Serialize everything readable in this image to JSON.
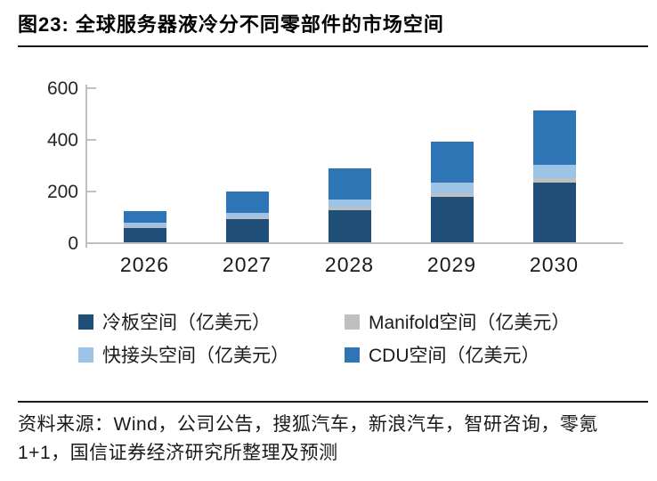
{
  "header": {
    "title": "图23: 全球服务器液冷分不同零部件的市场空间"
  },
  "chart_data": {
    "type": "bar",
    "stacked": true,
    "title": "全球服务器液冷分不同零部件的市场空间",
    "categories": [
      "2026",
      "2027",
      "2028",
      "2029",
      "2030"
    ],
    "series": [
      {
        "name": "冷板空间（亿美元）",
        "color": "#1F4E79",
        "values": [
          55,
          90,
          125,
          175,
          230
        ]
      },
      {
        "name": "Manifold空间（亿美元）",
        "color": "#BFBFBF",
        "values": [
          5,
          5,
          10,
          15,
          20
        ]
      },
      {
        "name": "快接头空间（亿美元）",
        "color": "#9DC3E6",
        "values": [
          15,
          20,
          30,
          40,
          50
        ]
      },
      {
        "name": "CDU空间（亿美元）",
        "color": "#2E75B6",
        "values": [
          45,
          80,
          120,
          160,
          210
        ]
      }
    ],
    "totals": [
      120,
      195,
      285,
      390,
      510
    ],
    "xlabel": "",
    "ylabel": "",
    "ylim": [
      0,
      600
    ],
    "yticks": [
      0,
      200,
      400,
      600
    ],
    "grid": false,
    "legend_position": "bottom",
    "axis_color": "#BFBFBF",
    "text_color": "#1A1A1A"
  },
  "source": {
    "text": "资料来源：Wind，公司公告，搜狐汽车，新浪汽车，智研咨询，零氪1+1，国信证券经济研究所整理及预测"
  }
}
